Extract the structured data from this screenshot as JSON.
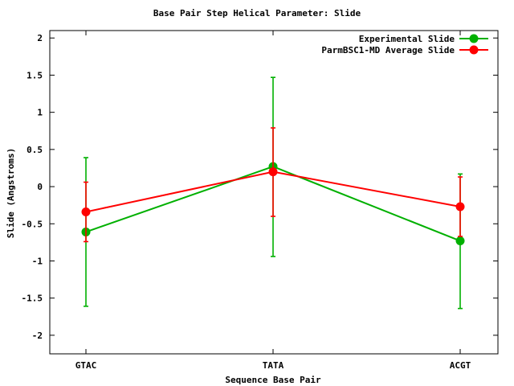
{
  "chart_data": {
    "type": "line",
    "title": "Base Pair Step Helical Parameter: Slide",
    "xlabel": "Sequence Base Pair",
    "ylabel": "Slide (Angstroms)",
    "categories": [
      "GTAC",
      "TATA",
      "ACGT"
    ],
    "ylim": [
      -2.25,
      2.1
    ],
    "yticks": [
      2,
      1.5,
      1,
      0.5,
      0,
      -0.5,
      -1,
      -1.5,
      -2
    ],
    "ytick_labels": [
      "2",
      "1.5",
      "1",
      "0.5",
      "0",
      "-0.5",
      "-1",
      "-1.5",
      "-2"
    ],
    "grid": false,
    "legend_position": "top-right",
    "series": [
      {
        "name": "Experimental Slide",
        "color": "#00b000",
        "values": [
          -0.61,
          0.27,
          -0.73
        ],
        "error_low": [
          -1.61,
          -0.94,
          -1.64
        ],
        "error_high": [
          0.39,
          1.47,
          0.17
        ]
      },
      {
        "name": "ParmBSC1-MD Average Slide",
        "color": "#ff0000",
        "values": [
          -0.34,
          0.2,
          -0.27
        ],
        "error_low": [
          -0.74,
          -0.4,
          -0.67
        ],
        "error_high": [
          0.06,
          0.79,
          0.13
        ]
      }
    ]
  }
}
